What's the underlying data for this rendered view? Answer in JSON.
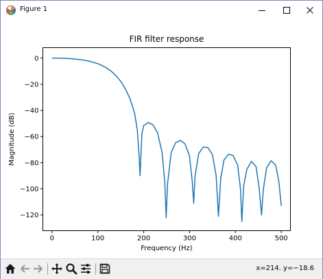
{
  "window": {
    "title": "Figure 1",
    "minimize_icon": "minimize-icon",
    "maximize_icon": "maximize-icon",
    "close_icon": "close-icon"
  },
  "toolbar": {
    "buttons": [
      "home-icon",
      "back-arrow-icon",
      "forward-arrow-icon",
      "pan-icon",
      "zoom-icon",
      "configure-subplots-icon",
      "save-icon"
    ],
    "coordinates": "x=214. y=−18.6"
  },
  "chart_data": {
    "type": "line",
    "title": "FIR filter response",
    "xlabel": "Frequency (Hz)",
    "ylabel": "Magnitude (dB)",
    "xlim": [
      -20,
      520
    ],
    "ylim": [
      -132,
      8
    ],
    "xticks": [
      0,
      100,
      200,
      300,
      400,
      500
    ],
    "xtick_labels": [
      "0",
      "100",
      "200",
      "300",
      "400",
      "500"
    ],
    "yticks": [
      0,
      -20,
      -40,
      -60,
      -80,
      -100,
      -120
    ],
    "ytick_labels": [
      "0",
      "−20",
      "−40",
      "−60",
      "−80",
      "−100",
      "−120"
    ],
    "grid": false,
    "line_color": "#1f77b4",
    "series": [
      {
        "x": [
          0,
          10,
          20,
          30,
          40,
          50,
          60,
          70,
          80,
          90,
          100,
          110,
          120,
          130,
          140,
          150,
          160,
          170,
          180,
          186,
          190,
          192,
          196,
          200,
          210,
          220,
          230,
          240,
          246,
          249,
          252,
          260,
          270,
          280,
          290,
          300,
          306,
          309,
          312,
          320,
          330,
          340,
          350,
          358,
          363,
          368,
          375,
          385,
          395,
          405,
          411,
          414,
          418,
          425,
          435,
          445,
          452,
          457,
          461,
          468,
          478,
          488,
          495,
          500
        ],
        "y": [
          0,
          0,
          -0.1,
          -0.2,
          -0.4,
          -0.7,
          -1.1,
          -1.6,
          -2.3,
          -3.2,
          -4.3,
          -5.8,
          -7.8,
          -10.3,
          -13.6,
          -17.9,
          -23.5,
          -31,
          -42,
          -55,
          -75,
          -90,
          -58,
          -51.5,
          -49.3,
          -51,
          -57,
          -72,
          -95,
          -122,
          -96,
          -72,
          -64.5,
          -63,
          -65.5,
          -75,
          -95,
          -111,
          -90,
          -73,
          -68,
          -68.5,
          -74,
          -90,
          -121,
          -92,
          -78,
          -73.5,
          -74.5,
          -82,
          -100,
          -125,
          -98,
          -85,
          -79,
          -83,
          -100,
          -120,
          -100,
          -84,
          -78.5,
          -82,
          -95,
          -113
        ]
      }
    ]
  }
}
